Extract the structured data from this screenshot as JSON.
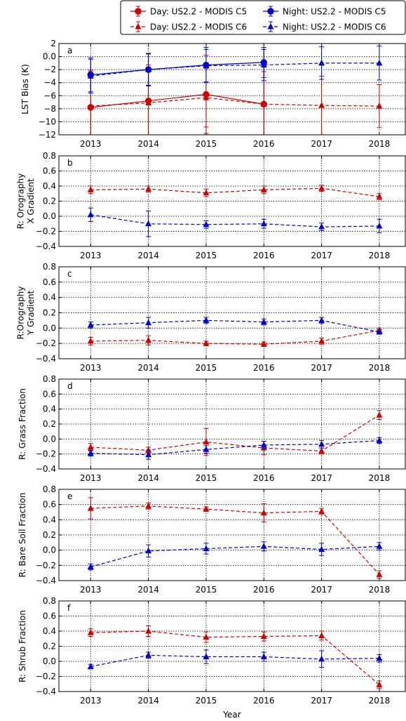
{
  "legend": {
    "entries": [
      {
        "label": "Day: US2.2 - MODIS C5",
        "color": "#d10000",
        "marker": "circle",
        "linestyle": "solid"
      },
      {
        "label": "Day: US2.2 - MODIS C6",
        "color": "#d10000",
        "marker": "triangle",
        "linestyle": "dashed"
      },
      {
        "label": "Night: US2.2 - MODIS C5",
        "color": "#0000d0",
        "marker": "circle",
        "linestyle": "solid"
      },
      {
        "label": "Night: US2.2 - MODIS C6",
        "color": "#0000d0",
        "marker": "triangle",
        "linestyle": "dashed"
      }
    ],
    "placement": "top-right, above panels"
  },
  "xlabel": "Year",
  "chart_data": [
    {
      "type": "line",
      "panel_letter": "a",
      "ylabel": "LST Bias (K)",
      "ylim": [
        -12,
        2
      ],
      "yticks": [
        2,
        0,
        -2,
        -4,
        -6,
        -8,
        -10,
        -12
      ],
      "x": [
        2013,
        2014,
        2015,
        2016,
        2017,
        2018
      ],
      "xlim": [
        2012.45,
        2018.45
      ],
      "grid": true,
      "series": [
        {
          "name": "Day: US2.2 - MODIS C5",
          "x": [
            2013,
            2014,
            2015,
            2016
          ],
          "values": [
            -7.8,
            -6.8,
            -5.8,
            -7.3
          ],
          "errors": [
            5.5,
            5.5,
            6.0,
            6.0
          ]
        },
        {
          "name": "Day: US2.2 - MODIS C6",
          "x": [
            2013,
            2014,
            2015,
            2016,
            2017,
            2018
          ],
          "values": [
            -7.6,
            -7.1,
            -6.3,
            -7.3,
            -7.5,
            -7.6
          ],
          "errors": [
            5.5,
            5.5,
            4.5,
            5.0,
            4.5,
            3.3
          ]
        },
        {
          "name": "Night: US2.2 - MODIS C5",
          "x": [
            2013,
            2014,
            2015,
            2016
          ],
          "values": [
            -2.8,
            -2.0,
            -1.3,
            -0.9
          ],
          "errors": [
            2.6,
            2.5,
            2.7,
            2.3
          ]
        },
        {
          "name": "Night: US2.2 - MODIS C6",
          "x": [
            2013,
            2014,
            2015,
            2016,
            2017,
            2018
          ],
          "values": [
            -3.0,
            -2.0,
            -1.4,
            -1.3,
            -1.0,
            -1.0
          ],
          "errors": [
            2.6,
            2.4,
            2.5,
            2.4,
            2.5,
            2.6
          ]
        }
      ]
    },
    {
      "type": "line",
      "panel_letter": "b",
      "ylabel": "R: Orography X Gradient",
      "ylim": [
        -0.4,
        0.8
      ],
      "yticks": [
        0.8,
        0.6,
        0.4,
        0.2,
        0.0,
        -0.2,
        -0.4
      ],
      "x": [
        2013,
        2014,
        2015,
        2016,
        2017,
        2018
      ],
      "xlim": [
        2012.45,
        2018.45
      ],
      "grid": true,
      "series": [
        {
          "name": "Day: US2.2 - MODIS C6",
          "x": [
            2013,
            2014,
            2015,
            2016,
            2017,
            2018
          ],
          "values": [
            0.35,
            0.36,
            0.31,
            0.35,
            0.37,
            0.26
          ],
          "errors": [
            0.05,
            0.04,
            0.05,
            0.05,
            0.04,
            0.04
          ]
        },
        {
          "name": "Night: US2.2 - MODIS C6",
          "x": [
            2013,
            2014,
            2015,
            2016,
            2017,
            2018
          ],
          "values": [
            0.02,
            -0.1,
            -0.11,
            -0.1,
            -0.14,
            -0.13
          ],
          "errors": [
            0.09,
            0.17,
            0.05,
            0.06,
            0.05,
            0.09
          ]
        }
      ]
    },
    {
      "type": "line",
      "panel_letter": "c",
      "ylabel": "R:Orography Y Gradient",
      "ylim": [
        -0.4,
        0.8
      ],
      "yticks": [
        0.8,
        0.6,
        0.4,
        0.2,
        0.0,
        -0.2,
        -0.4
      ],
      "x": [
        2013,
        2014,
        2015,
        2016,
        2017,
        2018
      ],
      "xlim": [
        2012.45,
        2018.45
      ],
      "grid": true,
      "series": [
        {
          "name": "Day: US2.2 - MODIS C6",
          "x": [
            2013,
            2014,
            2015,
            2016,
            2017,
            2018
          ],
          "values": [
            -0.17,
            -0.16,
            -0.2,
            -0.21,
            -0.17,
            -0.03
          ],
          "errors": [
            0.05,
            0.06,
            0.03,
            0.03,
            0.04,
            0.03
          ]
        },
        {
          "name": "Night: US2.2 - MODIS C6",
          "x": [
            2013,
            2014,
            2015,
            2016,
            2017,
            2018
          ],
          "values": [
            0.04,
            0.07,
            0.1,
            0.08,
            0.1,
            -0.05
          ],
          "errors": [
            0.04,
            0.07,
            0.04,
            0.04,
            0.04,
            0.03
          ]
        }
      ]
    },
    {
      "type": "line",
      "panel_letter": "d",
      "ylabel": "R: Grass Fraction",
      "ylim": [
        -0.4,
        0.8
      ],
      "yticks": [
        0.8,
        0.6,
        0.4,
        0.2,
        0.0,
        -0.2,
        -0.4
      ],
      "x": [
        2013,
        2014,
        2015,
        2016,
        2017,
        2018
      ],
      "xlim": [
        2012.45,
        2018.45
      ],
      "grid": true,
      "series": [
        {
          "name": "Day: US2.2 - MODIS C6",
          "x": [
            2013,
            2014,
            2015,
            2016,
            2017,
            2018
          ],
          "values": [
            -0.11,
            -0.15,
            -0.04,
            -0.12,
            -0.16,
            0.32
          ],
          "errors": [
            0.05,
            0.04,
            0.18,
            0.09,
            0.04,
            0.06
          ]
        },
        {
          "name": "Night: US2.2 - MODIS C6",
          "x": [
            2013,
            2014,
            2015,
            2016,
            2017,
            2018
          ],
          "values": [
            -0.19,
            -0.21,
            -0.14,
            -0.08,
            -0.07,
            -0.02
          ],
          "errors": [
            0.04,
            0.06,
            0.05,
            0.05,
            0.05,
            0.04
          ]
        }
      ]
    },
    {
      "type": "line",
      "panel_letter": "e",
      "ylabel": "R: Bare Soil Fraction",
      "ylim": [
        -0.4,
        0.8
      ],
      "yticks": [
        0.8,
        0.6,
        0.4,
        0.2,
        0.0,
        -0.2,
        -0.4
      ],
      "x": [
        2013,
        2014,
        2015,
        2016,
        2017,
        2018
      ],
      "xlim": [
        2012.45,
        2018.45
      ],
      "grid": true,
      "series": [
        {
          "name": "Day: US2.2 - MODIS C6",
          "x": [
            2013,
            2014,
            2015,
            2016,
            2017,
            2018
          ],
          "values": [
            0.55,
            0.58,
            0.54,
            0.49,
            0.51,
            -0.32
          ],
          "errors": [
            0.14,
            0.04,
            0.03,
            0.12,
            0.04,
            0.05
          ]
        },
        {
          "name": "Night: US2.2 - MODIS C6",
          "x": [
            2013,
            2014,
            2015,
            2016,
            2017,
            2018
          ],
          "values": [
            -0.22,
            -0.01,
            0.02,
            0.05,
            0.01,
            0.05
          ],
          "errors": [
            0.04,
            0.08,
            0.07,
            0.06,
            0.08,
            0.05
          ]
        }
      ]
    },
    {
      "type": "line",
      "panel_letter": "f",
      "ylabel": "R: Shrub Fraction",
      "ylim": [
        -0.4,
        0.8
      ],
      "yticks": [
        0.8,
        0.6,
        0.4,
        0.2,
        0.0,
        -0.2,
        -0.4
      ],
      "x": [
        2013,
        2014,
        2015,
        2016,
        2017,
        2018
      ],
      "xlim": [
        2012.45,
        2018.45
      ],
      "grid": true,
      "series": [
        {
          "name": "Day: US2.2 - MODIS C6",
          "x": [
            2013,
            2014,
            2015,
            2016,
            2017,
            2018
          ],
          "values": [
            0.38,
            0.4,
            0.32,
            0.33,
            0.34,
            -0.31
          ],
          "errors": [
            0.05,
            0.07,
            0.07,
            0.06,
            0.06,
            0.05
          ]
        },
        {
          "name": "Night: US2.2 - MODIS C6",
          "x": [
            2013,
            2014,
            2015,
            2016,
            2017,
            2018
          ],
          "values": [
            -0.07,
            0.08,
            0.06,
            0.06,
            0.03,
            0.04
          ],
          "errors": [
            0.03,
            0.04,
            0.09,
            0.06,
            0.11,
            0.05
          ]
        }
      ]
    }
  ]
}
